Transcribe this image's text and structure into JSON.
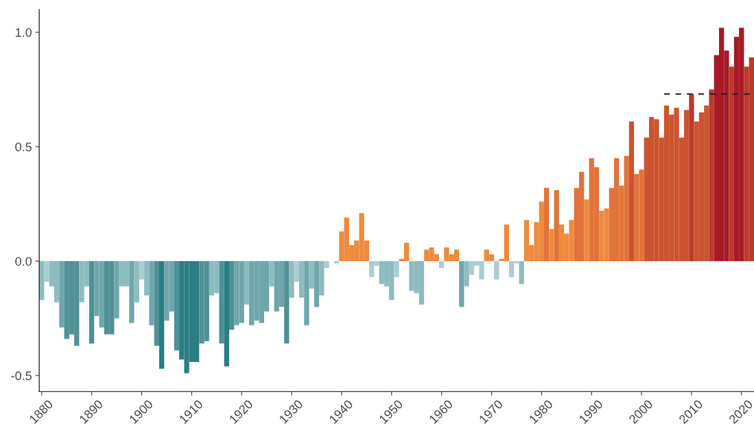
{
  "chart_data": {
    "type": "bar",
    "x": [
      1880,
      1881,
      1882,
      1883,
      1884,
      1885,
      1886,
      1887,
      1888,
      1889,
      1890,
      1891,
      1892,
      1893,
      1894,
      1895,
      1896,
      1897,
      1898,
      1899,
      1900,
      1901,
      1902,
      1903,
      1904,
      1905,
      1906,
      1907,
      1908,
      1909,
      1910,
      1911,
      1912,
      1913,
      1914,
      1915,
      1916,
      1917,
      1918,
      1919,
      1920,
      1921,
      1922,
      1923,
      1924,
      1925,
      1926,
      1927,
      1928,
      1929,
      1930,
      1931,
      1932,
      1933,
      1934,
      1935,
      1936,
      1937,
      1938,
      1939,
      1940,
      1941,
      1942,
      1943,
      1944,
      1945,
      1946,
      1947,
      1948,
      1949,
      1950,
      1951,
      1952,
      1953,
      1954,
      1955,
      1956,
      1957,
      1958,
      1959,
      1960,
      1961,
      1962,
      1963,
      1964,
      1965,
      1966,
      1967,
      1968,
      1969,
      1970,
      1971,
      1972,
      1973,
      1974,
      1975,
      1976,
      1977,
      1978,
      1979,
      1980,
      1981,
      1982,
      1983,
      1984,
      1985,
      1986,
      1987,
      1988,
      1989,
      1990,
      1991,
      1992,
      1993,
      1994,
      1995,
      1996,
      1997,
      1998,
      1999,
      2000,
      2001,
      2002,
      2003,
      2004,
      2005,
      2006,
      2007,
      2008,
      2009,
      2010,
      2011,
      2012,
      2013,
      2014,
      2015,
      2016,
      2017,
      2018,
      2019,
      2020,
      2021,
      2022
    ],
    "series": [
      {
        "values": [
          -0.17,
          -0.09,
          -0.11,
          -0.18,
          -0.29,
          -0.34,
          -0.32,
          -0.37,
          -0.18,
          -0.11,
          -0.36,
          -0.24,
          -0.29,
          -0.32,
          -0.32,
          -0.25,
          -0.11,
          -0.11,
          -0.27,
          -0.18,
          -0.08,
          -0.15,
          -0.28,
          -0.37,
          -0.47,
          -0.26,
          -0.22,
          -0.39,
          -0.43,
          -0.49,
          -0.44,
          -0.44,
          -0.36,
          -0.35,
          -0.15,
          -0.14,
          -0.36,
          -0.46,
          -0.3,
          -0.28,
          -0.27,
          -0.19,
          -0.28,
          -0.26,
          -0.27,
          -0.22,
          -0.11,
          -0.22,
          -0.2,
          -0.36,
          -0.16,
          -0.09,
          -0.16,
          -0.28,
          -0.12,
          -0.2,
          -0.15,
          -0.03,
          0.0,
          -0.01,
          0.13,
          0.19,
          0.07,
          0.09,
          0.21,
          0.09,
          -0.07,
          -0.02,
          -0.1,
          -0.11,
          -0.17,
          -0.07,
          0.01,
          0.08,
          -0.13,
          -0.14,
          -0.19,
          0.05,
          0.06,
          0.03,
          -0.03,
          0.06,
          0.03,
          0.05,
          -0.2,
          -0.11,
          -0.06,
          -0.02,
          -0.08,
          0.05,
          0.03,
          -0.08,
          0.01,
          0.16,
          -0.07,
          -0.01,
          -0.1,
          0.18,
          0.07,
          0.17,
          0.26,
          0.32,
          0.14,
          0.31,
          0.16,
          0.12,
          0.18,
          0.32,
          0.39,
          0.27,
          0.45,
          0.41,
          0.22,
          0.23,
          0.32,
          0.45,
          0.33,
          0.46,
          0.61,
          0.38,
          0.4,
          0.54,
          0.63,
          0.62,
          0.54,
          0.68,
          0.64,
          0.67,
          0.54,
          0.66,
          0.73,
          0.61,
          0.65,
          0.68,
          0.75,
          0.9,
          1.02,
          0.92,
          0.85,
          0.98,
          1.02,
          0.85,
          0.89
        ],
        "colors": [
          "#8dbcc0",
          "#a9ced2",
          "#8dbcc0",
          "#8dbcc0",
          "#6ea6ab",
          "#4f9196",
          "#4f9196",
          "#4f9196",
          "#8dbcc0",
          "#8dbcc0",
          "#4f9196",
          "#6ea6ab",
          "#6ea6ab",
          "#4f9196",
          "#4f9196",
          "#6ea6ab",
          "#8dbcc0",
          "#8dbcc0",
          "#6ea6ab",
          "#8dbcc0",
          "#a9ced2",
          "#8dbcc0",
          "#6ea6ab",
          "#4f9196",
          "#2a7e83",
          "#6ea6ab",
          "#6ea6ab",
          "#4f9196",
          "#2a7e83",
          "#2a7e83",
          "#2a7e83",
          "#2a7e83",
          "#4f9196",
          "#4f9196",
          "#8dbcc0",
          "#8dbcc0",
          "#4f9196",
          "#2a7e83",
          "#4f9196",
          "#6ea6ab",
          "#6ea6ab",
          "#8dbcc0",
          "#6ea6ab",
          "#6ea6ab",
          "#6ea6ab",
          "#6ea6ab",
          "#8dbcc0",
          "#6ea6ab",
          "#6ea6ab",
          "#4f9196",
          "#8dbcc0",
          "#a9ced2",
          "#8dbcc0",
          "#6ea6ab",
          "#8dbcc0",
          "#6ea6ab",
          "#8dbcc0",
          "#a9ced2",
          "#a9ced2",
          "#a9ced2",
          "#ef8a3d",
          "#ef8a3d",
          "#ef8a3d",
          "#ef8a3d",
          "#ef8a3d",
          "#ef8a3d",
          "#a9ced2",
          "#a9ced2",
          "#8dbcc0",
          "#8dbcc0",
          "#8dbcc0",
          "#a9ced2",
          "#ef8a3d",
          "#ef8a3d",
          "#8dbcc0",
          "#8dbcc0",
          "#8dbcc0",
          "#ef8a3d",
          "#ef8a3d",
          "#ef8a3d",
          "#a9ced2",
          "#ef8a3d",
          "#ef8a3d",
          "#ef8a3d",
          "#6ea6ab",
          "#8dbcc0",
          "#a9ced2",
          "#a9ced2",
          "#a9ced2",
          "#ef8a3d",
          "#ef8a3d",
          "#a9ced2",
          "#ef8a3d",
          "#ef8a3d",
          "#a9ced2",
          "#a9ced2",
          "#8dbcc0",
          "#ef8a3d",
          "#ef8a3d",
          "#ef8a3d",
          "#ef8a3d",
          "#e2733a",
          "#ef8a3d",
          "#e2733a",
          "#ef8a3d",
          "#ef8a3d",
          "#ef8a3d",
          "#e2733a",
          "#e2733a",
          "#ef8a3d",
          "#e2733a",
          "#e2733a",
          "#ef8a3d",
          "#ef8a3d",
          "#e2733a",
          "#e2733a",
          "#e2733a",
          "#e2733a",
          "#cc5330",
          "#e2733a",
          "#e2733a",
          "#cc5330",
          "#cc5330",
          "#cc5330",
          "#cc5330",
          "#cc5330",
          "#cc5330",
          "#cc5330",
          "#cc5330",
          "#cc5330",
          "#bb3a2b",
          "#cc5330",
          "#cc5330",
          "#cc5330",
          "#bb3a2b",
          "#a71a26",
          "#a71a26",
          "#a71a26",
          "#bb3a2b",
          "#a71a26",
          "#a71a26",
          "#bb3a2b",
          "#bb3a2b"
        ]
      },
      {
        "type": "line",
        "x": [
          2004.5,
          2022.5
        ],
        "values": [
          0.73,
          0.73
        ],
        "color": "#222222",
        "line_style": "dashed"
      }
    ],
    "xlim": [
      1879.5,
      2022.5
    ],
    "xticks": [
      1880,
      1890,
      1900,
      1910,
      1920,
      1930,
      1940,
      1950,
      1960,
      1970,
      1980,
      1990,
      2000,
      2010,
      2020
    ],
    "ylim": [
      -0.57,
      1.1
    ],
    "yticks": [
      {
        "value": -0.5,
        "label": "-0.5"
      },
      {
        "value": 0.0,
        "label": "0.0"
      },
      {
        "value": 0.5,
        "label": "0.5"
      },
      {
        "value": 1.0,
        "label": "1.0"
      }
    ],
    "grid": false
  }
}
